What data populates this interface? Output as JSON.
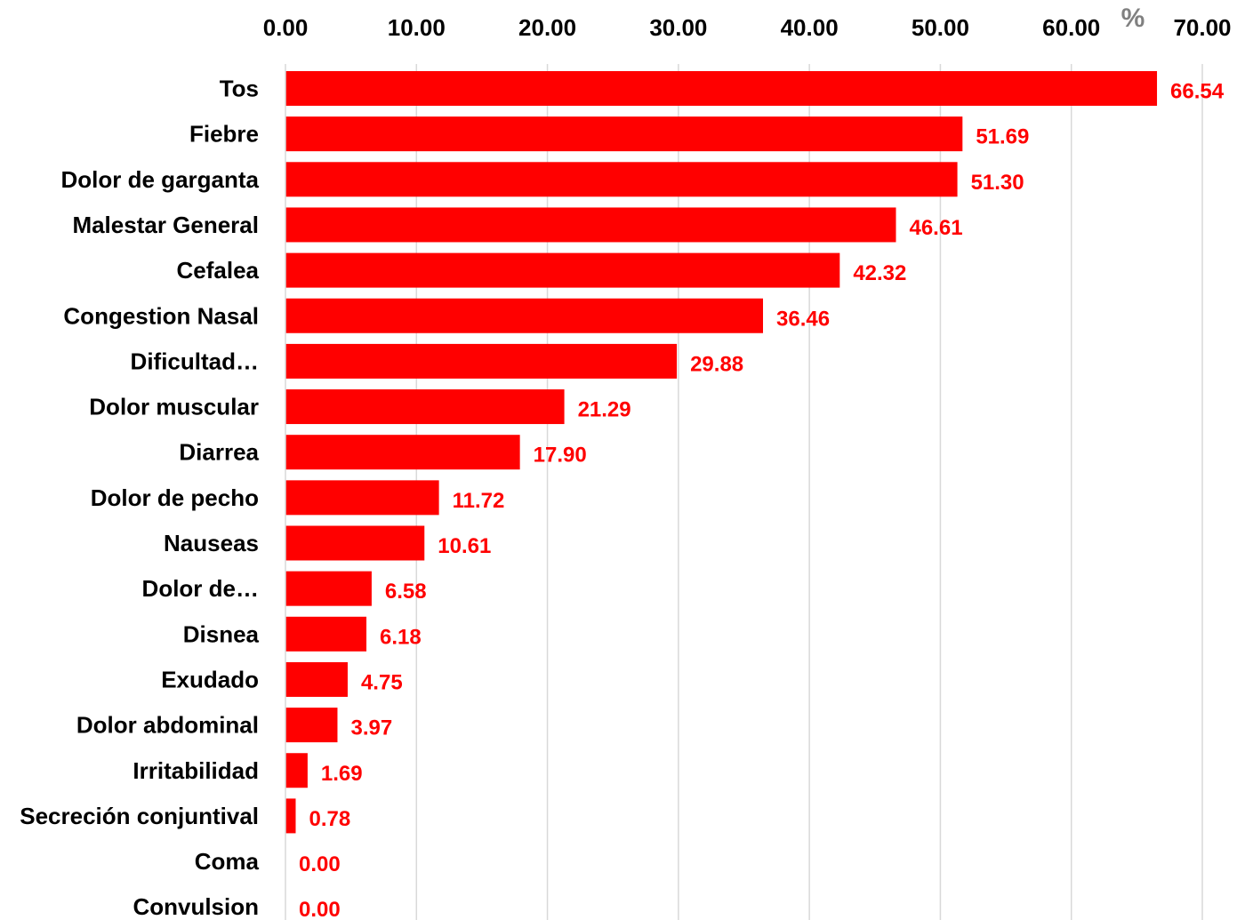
{
  "chart_data": {
    "type": "bar",
    "orientation": "horizontal",
    "unit_label": "%",
    "xlim": [
      0,
      70
    ],
    "x_ticks": [
      "0.00",
      "10.00",
      "20.00",
      "30.00",
      "40.00",
      "50.00",
      "60.00",
      "70.00"
    ],
    "x_tick_values": [
      0,
      10,
      20,
      30,
      40,
      50,
      60,
      70
    ],
    "x_axis_position": "top",
    "grid": true,
    "categories": [
      "Tos",
      "Fiebre",
      "Dolor de garganta",
      "Malestar General",
      "Cefalea",
      "Congestion Nasal",
      "Dificultad…",
      "Dolor muscular",
      "Diarrea",
      "Dolor de pecho",
      "Nauseas",
      "Dolor de…",
      "Disnea",
      "Exudado",
      "Dolor abdominal",
      "Irritabilidad",
      "Secreción conjuntival",
      "Coma",
      "Convulsion"
    ],
    "values": [
      66.54,
      51.69,
      51.3,
      46.61,
      42.32,
      36.46,
      29.88,
      21.29,
      17.9,
      11.72,
      10.61,
      6.58,
      6.18,
      4.75,
      3.97,
      1.69,
      0.78,
      0.0,
      0.0
    ],
    "value_labels": [
      "66.54",
      "51.69",
      "51.30",
      "46.61",
      "42.32",
      "36.46",
      "29.88",
      "21.29",
      "17.90",
      "11.72",
      "10.61",
      "6.58",
      "6.18",
      "4.75",
      "3.97",
      "1.69",
      "0.78",
      "0.00",
      "0.00"
    ],
    "colors": {
      "bar": "#ff0000",
      "data_label": "#ff0000",
      "grid": "#d9d9d9",
      "unit": "#808080"
    }
  }
}
